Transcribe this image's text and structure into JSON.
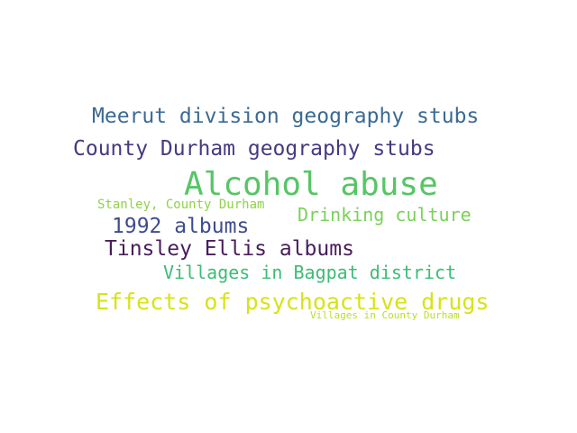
{
  "word_cloud": {
    "words": [
      {
        "text": "Meerut division geography stubs",
        "color": "#3b6a94"
      },
      {
        "text": "County Durham geography stubs",
        "color": "#453a82"
      },
      {
        "text": "Alcohol abuse",
        "color": "#57c566"
      },
      {
        "text": "Stanley, County Durham",
        "color": "#90d149"
      },
      {
        "text": "Drinking culture",
        "color": "#7bd05a"
      },
      {
        "text": "1992 albums",
        "color": "#3f4c8c"
      },
      {
        "text": "Tinsley Ellis albums",
        "color": "#481d5b"
      },
      {
        "text": "Villages in Bagpat district",
        "color": "#3cbc75"
      },
      {
        "text": "Effects of psychoactive drugs",
        "color": "#d8e21a"
      },
      {
        "text": "Villages in County Durham",
        "color": "#b9de29"
      }
    ]
  }
}
